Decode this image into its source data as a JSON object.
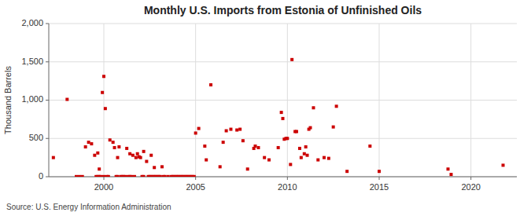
{
  "chart_data": {
    "type": "scatter",
    "title": "Monthly U.S. Imports from Estonia of Unfinished Oils",
    "ylabel": "Thousand Barrels",
    "source": "Source: U.S. Energy Information Administration",
    "xlim": [
      1997.0,
      2022.5
    ],
    "ylim": [
      0,
      2000
    ],
    "xticks": [
      2000,
      2005,
      2010,
      2015,
      2020
    ],
    "yticks": [
      0,
      500,
      {
        "value": 1000,
        "label": "1,000"
      },
      {
        "value": 1500,
        "label": "1,500"
      },
      {
        "value": 2000,
        "label": "2,000"
      }
    ],
    "grid": true,
    "series": [
      {
        "color": "#cc0000",
        "marker": "square",
        "x": [
          1997.25,
          1998.0,
          1999.0,
          1999.17,
          1999.33,
          1999.5,
          1999.67,
          1999.75,
          1999.92,
          2000.0,
          2000.08,
          2000.33,
          2000.5,
          2000.58,
          2000.75,
          2000.83,
          2001.25,
          2001.42,
          2001.58,
          2001.75,
          2001.83,
          2001.92,
          2002.0,
          2002.17,
          2002.33,
          2002.58,
          2002.75,
          2003.17,
          2005.0,
          2005.17,
          2005.5,
          2005.58,
          2005.83,
          2006.33,
          2006.5,
          2006.67,
          2006.92,
          2007.25,
          2007.42,
          2007.58,
          2007.83,
          2008.17,
          2008.25,
          2008.42,
          2008.75,
          2009.0,
          2009.5,
          2009.67,
          2009.75,
          2009.83,
          2009.92,
          2010.0,
          2010.17,
          2010.25,
          2010.42,
          2010.5,
          2010.67,
          2010.75,
          2010.92,
          2011.0,
          2011.08,
          2011.17,
          2011.25,
          2011.42,
          2011.67,
          2012.0,
          2012.25,
          2012.5,
          2012.67,
          2013.25,
          2014.5,
          2015.0,
          2018.75,
          2018.92,
          2021.75
        ],
        "values": [
          250,
          1010,
          390,
          450,
          430,
          280,
          310,
          100,
          1100,
          1310,
          890,
          480,
          450,
          380,
          250,
          390,
          370,
          300,
          280,
          250,
          300,
          260,
          250,
          330,
          200,
          280,
          120,
          130,
          570,
          630,
          400,
          220,
          1200,
          130,
          450,
          600,
          620,
          610,
          620,
          470,
          100,
          370,
          400,
          380,
          250,
          220,
          380,
          840,
          760,
          490,
          500,
          500,
          160,
          1530,
          590,
          590,
          370,
          250,
          300,
          390,
          280,
          620,
          640,
          900,
          220,
          250,
          240,
          650,
          920,
          70,
          400,
          70,
          100,
          30,
          150
        ]
      },
      {
        "color": "#cc0000",
        "marker": "square",
        "x": [
          1998.5,
          1998.67,
          1998.83,
          1999.58,
          1999.67,
          1999.75,
          1999.83,
          2000.0,
          2000.17,
          2000.25,
          2000.67,
          2000.75,
          2000.92,
          2001.0,
          2001.08,
          2001.17,
          2001.33,
          2001.42,
          2001.5,
          2001.67,
          2002.08,
          2002.17,
          2002.42,
          2002.5,
          2002.58,
          2002.67,
          2002.75,
          2002.83,
          2002.92,
          2003.0,
          2003.08,
          2003.25,
          2003.33,
          2003.5,
          2003.67,
          2003.75,
          2003.83,
          2003.92,
          2004.0,
          2004.08,
          2004.17,
          2004.25,
          2004.33,
          2004.42,
          2004.5,
          2004.58,
          2004.67,
          2004.75,
          2004.83,
          2004.92
        ],
        "values": [
          2,
          2,
          2,
          2,
          2,
          2,
          2,
          2,
          2,
          2,
          2,
          2,
          2,
          2,
          2,
          2,
          2,
          2,
          2,
          2,
          2,
          2,
          2,
          2,
          2,
          2,
          2,
          2,
          2,
          2,
          2,
          2,
          2,
          2,
          2,
          2,
          2,
          2,
          2,
          2,
          2,
          2,
          2,
          2,
          2,
          2,
          2,
          2,
          2,
          2
        ]
      }
    ]
  }
}
